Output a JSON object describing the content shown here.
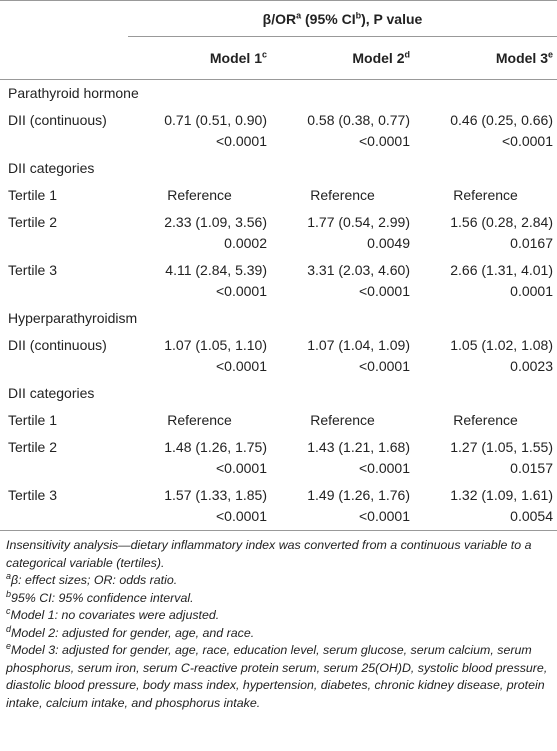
{
  "header": {
    "group": [
      {
        "text": "β/OR",
        "sup": "a"
      },
      {
        "text": " (95% CI",
        "sup": "b"
      },
      {
        "text": "), P value"
      }
    ],
    "columns": [
      {
        "text": "Model 1",
        "sup": "c"
      },
      {
        "text": "Model 2",
        "sup": "d"
      },
      {
        "text": "Model 3",
        "sup": "e"
      }
    ]
  },
  "table": {
    "sections": [
      {
        "label": "Parathyroid hormone",
        "rows": [
          {
            "label": "DII (continuous)",
            "cells": [
              [
                "0.71 (0.51, 0.90)",
                "<0.0001"
              ],
              [
                "0.58 (0.38, 0.77)",
                "<0.0001"
              ],
              [
                "0.46 (0.25, 0.66)",
                "<0.0001"
              ]
            ]
          }
        ]
      },
      {
        "label": "DII categories",
        "rows": [
          {
            "label": "Tertile 1",
            "cells": [
              [
                "Reference"
              ],
              [
                "Reference"
              ],
              [
                "Reference"
              ]
            ]
          },
          {
            "label": "Tertile 2",
            "cells": [
              [
                "2.33 (1.09, 3.56)",
                "0.0002"
              ],
              [
                "1.77 (0.54, 2.99)",
                "0.0049"
              ],
              [
                "1.56 (0.28, 2.84)",
                "0.0167"
              ]
            ]
          },
          {
            "label": "Tertile 3",
            "cells": [
              [
                "4.11 (2.84, 5.39)",
                "<0.0001"
              ],
              [
                "3.31 (2.03, 4.60)",
                "<0.0001"
              ],
              [
                "2.66 (1.31, 4.01)",
                "0.0001"
              ]
            ]
          }
        ]
      },
      {
        "label": "Hyperparathyroidism",
        "rows": [
          {
            "label": "DII (continuous)",
            "cells": [
              [
                "1.07 (1.05, 1.10)",
                "<0.0001"
              ],
              [
                "1.07 (1.04, 1.09)",
                "<0.0001"
              ],
              [
                "1.05 (1.02, 1.08)",
                "0.0023"
              ]
            ]
          }
        ]
      },
      {
        "label": "DII categories",
        "rows": [
          {
            "label": "Tertile 1",
            "cells": [
              [
                "Reference"
              ],
              [
                "Reference"
              ],
              [
                "Reference"
              ]
            ]
          },
          {
            "label": "Tertile 2",
            "cells": [
              [
                "1.48 (1.26, 1.75)",
                "<0.0001"
              ],
              [
                "1.43 (1.21, 1.68)",
                "<0.0001"
              ],
              [
                "1.27 (1.05, 1.55)",
                "0.0157"
              ]
            ]
          },
          {
            "label": "Tertile 3",
            "cells": [
              [
                "1.57 (1.33, 1.85)",
                "<0.0001"
              ],
              [
                "1.49 (1.26, 1.76)",
                "<0.0001"
              ],
              [
                "1.32 (1.09, 1.61)",
                "0.0054"
              ]
            ]
          }
        ]
      }
    ]
  },
  "footnotes": [
    {
      "text": "Insensitivity analysis—dietary inflammatory index was converted from a continuous variable to a categorical variable (tertiles)."
    },
    {
      "sup": "a",
      "text": "β: effect sizes; OR: odds ratio."
    },
    {
      "sup": "b",
      "text": "95% CI: 95% confidence interval."
    },
    {
      "sup": "c",
      "text": "Model 1: no covariates were adjusted."
    },
    {
      "sup": "d",
      "text": "Model 2: adjusted for gender, age, and race."
    },
    {
      "sup": "e",
      "text": "Model 3: adjusted for gender, age, race, education level, serum glucose, serum calcium, serum phosphorus, serum iron, serum C-reactive protein serum, serum 25(OH)D, systolic blood pressure, diastolic blood pressure, body mass index, hypertension, diabetes, chronic kidney disease, protein intake, calcium intake, and phosphorus intake."
    }
  ]
}
